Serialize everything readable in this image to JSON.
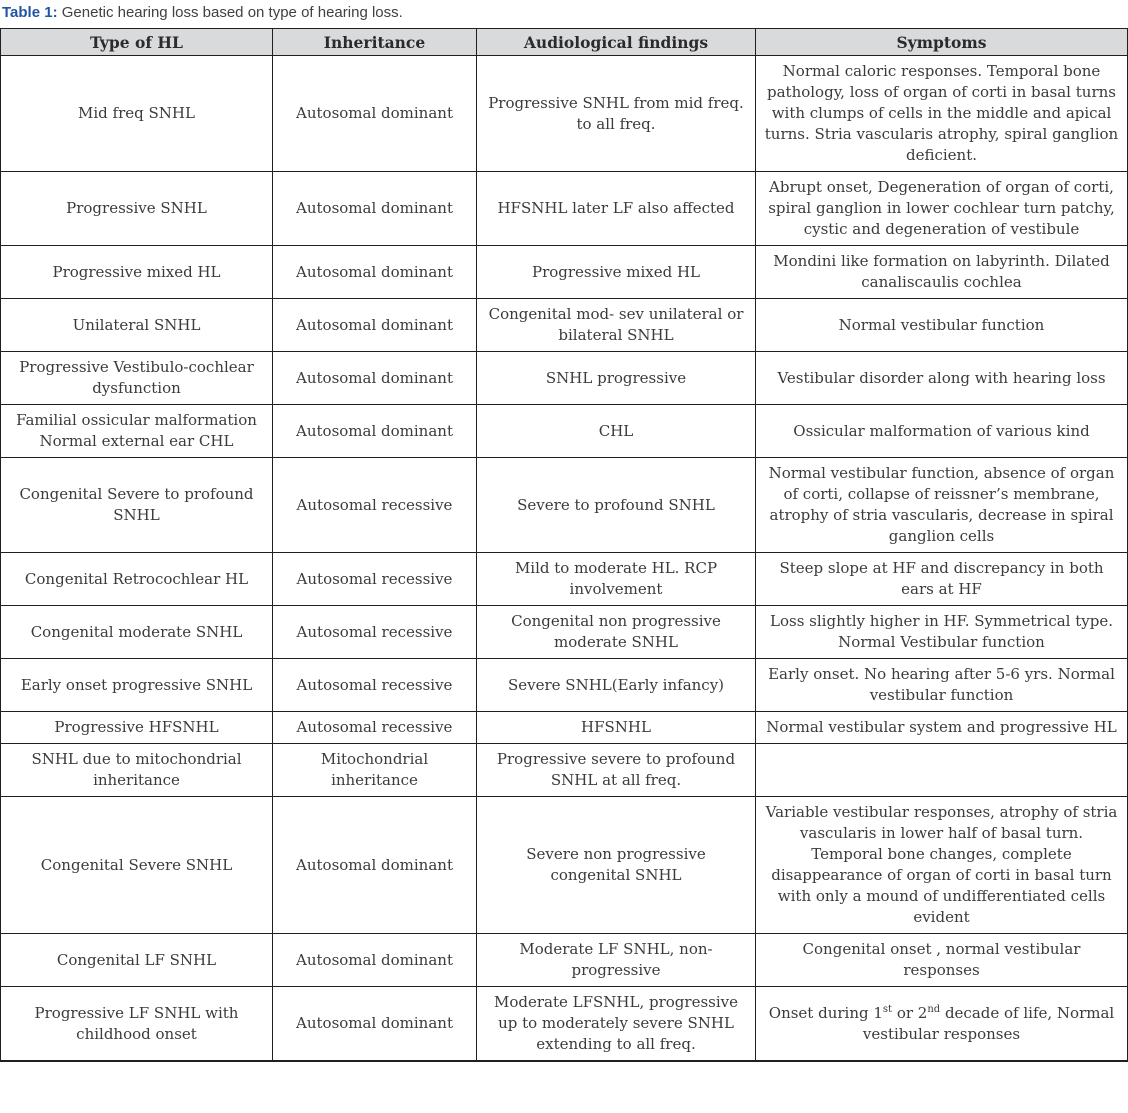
{
  "caption": {
    "label": "Table 1:",
    "text": " Genetic hearing loss based on type of hearing loss."
  },
  "colors": {
    "caption_accent": "#2155a4",
    "header_bg": "#d9dadb",
    "border": "#231f20",
    "body_text": "#3b3b3b"
  },
  "table": {
    "headers": [
      "Type of HL",
      "Inheritance",
      "Audiological findings",
      "Symptoms"
    ],
    "header_keys": [
      "type-of-hl",
      "inheritance",
      "audiological-findings",
      "symptoms"
    ],
    "rows": [
      [
        "Mid freq SNHL",
        "Autosomal dominant",
        "Progressive SNHL from mid freq. to all freq.",
        "Normal caloric responses. Temporal bone pathology, loss of organ of corti in basal turns with clumps of cells in the middle and apical turns. Stria vascularis atrophy, spiral ganglion deficient."
      ],
      [
        "Progressive SNHL",
        "Autosomal dominant",
        "HFSNHL later LF also affected",
        "Abrupt onset, Degeneration of organ of corti, spiral ganglion in lower cochlear turn patchy, cystic and degeneration of vestibule"
      ],
      [
        "Progressive mixed HL",
        "Autosomal dominant",
        "Progressive mixed HL",
        "Mondini like formation on labyrinth. Dilated canaliscaulis cochlea"
      ],
      [
        "Unilateral SNHL",
        "Autosomal dominant",
        "Congenital mod- sev unilateral or bilateral SNHL",
        "Normal vestibular function"
      ],
      [
        "Progressive Vestibulo-cochlear dysfunction",
        "Autosomal dominant",
        "SNHL progressive",
        "Vestibular disorder along with hearing loss"
      ],
      [
        "Familial ossicular malformation Normal external ear CHL",
        "Autosomal dominant",
        "CHL",
        "Ossicular malformation of various kind"
      ],
      [
        "Congenital Severe to profound SNHL",
        "Autosomal recessive",
        "Severe to profound SNHL",
        "Normal vestibular function, absence of organ of corti, collapse of reissner’s membrane, atrophy of stria vascularis, decrease in spiral ganglion cells"
      ],
      [
        "Congenital Retrocochlear HL",
        "Autosomal recessive",
        "Mild to moderate HL. RCP involvement",
        "Steep slope at HF and discrepancy in both ears at HF"
      ],
      [
        "Congenital moderate SNHL",
        "Autosomal recessive",
        "Congenital non progressive moderate SNHL",
        "Loss slightly higher in HF. Symmetrical type. Normal Vestibular function"
      ],
      [
        "Early onset progressive SNHL",
        "Autosomal recessive",
        "Severe SNHL(Early infancy)",
        "Early onset. No hearing after 5-6 yrs. Normal vestibular function"
      ],
      [
        "Progressive HFSNHL",
        "Autosomal recessive",
        "HFSNHL",
        "Normal vestibular system and progressive HL"
      ],
      [
        "SNHL due to mitochondrial inheritance",
        "Mitochondrial inheritance",
        "Progressive severe to profound SNHL at all freq.",
        ""
      ],
      [
        "Congenital Severe SNHL",
        "Autosomal dominant",
        "Severe non progressive congenital SNHL",
        "Variable vestibular responses, atrophy of stria vascularis in lower half of basal turn. Temporal bone changes, complete disappearance of organ of corti in basal turn with only a mound of undifferentiated cells evident"
      ],
      [
        "Congenital LF SNHL",
        "Autosomal dominant",
        "Moderate LF SNHL, non- progressive",
        "Congenital onset , normal vestibular responses"
      ],
      [
        "Progressive LF SNHL with childhood onset",
        "Autosomal dominant",
        "Moderate LFSNHL, progressive up to moderately severe SNHL extending to all freq.",
        [
          {
            "t": "Onset during 1"
          },
          {
            "t": "st",
            "sup": true
          },
          {
            "t": " or  2"
          },
          {
            "t": "nd",
            "sup": true
          },
          {
            "t": "  decade of life, Normal vestibular responses"
          }
        ]
      ]
    ]
  }
}
